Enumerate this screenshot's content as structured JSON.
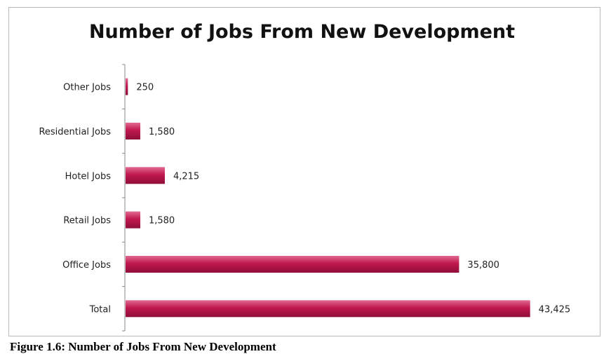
{
  "caption": "Figure 1.6: Number of Jobs From New Development",
  "colors": {
    "bar": "#c1184f",
    "bar_dark": "#8f0e38",
    "bar_light": "#e06a8f",
    "axis": "#888888"
  },
  "chart_data": {
    "type": "bar",
    "orientation": "horizontal",
    "title": "Number of Jobs From New Development",
    "categories": [
      "Other Jobs",
      "Residential Jobs",
      "Hotel Jobs",
      "Retail Jobs",
      "Office Jobs",
      "Total"
    ],
    "values": [
      250,
      1580,
      4215,
      1580,
      35800,
      43425
    ],
    "value_labels": [
      "250",
      "1,580",
      "4,215",
      "1,580",
      "35,800",
      "43,425"
    ],
    "xlabel": "",
    "ylabel": "",
    "xlim": [
      0,
      50000
    ],
    "grid": false,
    "legend": "none"
  }
}
